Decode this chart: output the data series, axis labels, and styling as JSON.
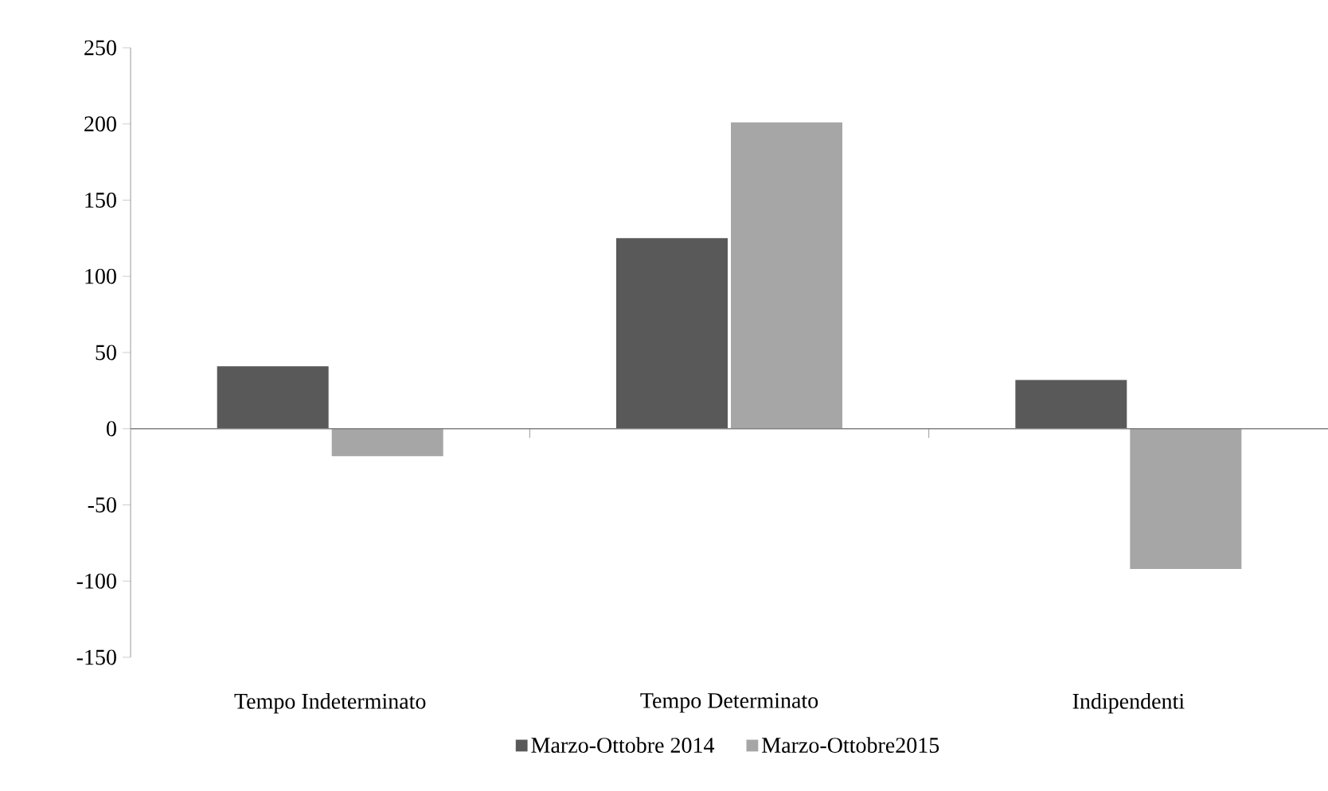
{
  "chart_data": {
    "type": "bar",
    "categories": [
      "Tempo Indeterminato",
      "Tempo Determinato",
      "Indipendenti"
    ],
    "series": [
      {
        "name": "Marzo-Ottobre 2014",
        "color": "#595959",
        "values": [
          41,
          125,
          32
        ]
      },
      {
        "name": "Marzo-Ottobre2015",
        "color": "#a6a6a6",
        "values": [
          -18,
          201,
          -92
        ]
      }
    ],
    "ylim": [
      -150,
      250
    ],
    "yticks": [
      -150,
      -100,
      -50,
      0,
      50,
      100,
      150,
      200,
      250
    ],
    "legend": "bottom"
  }
}
